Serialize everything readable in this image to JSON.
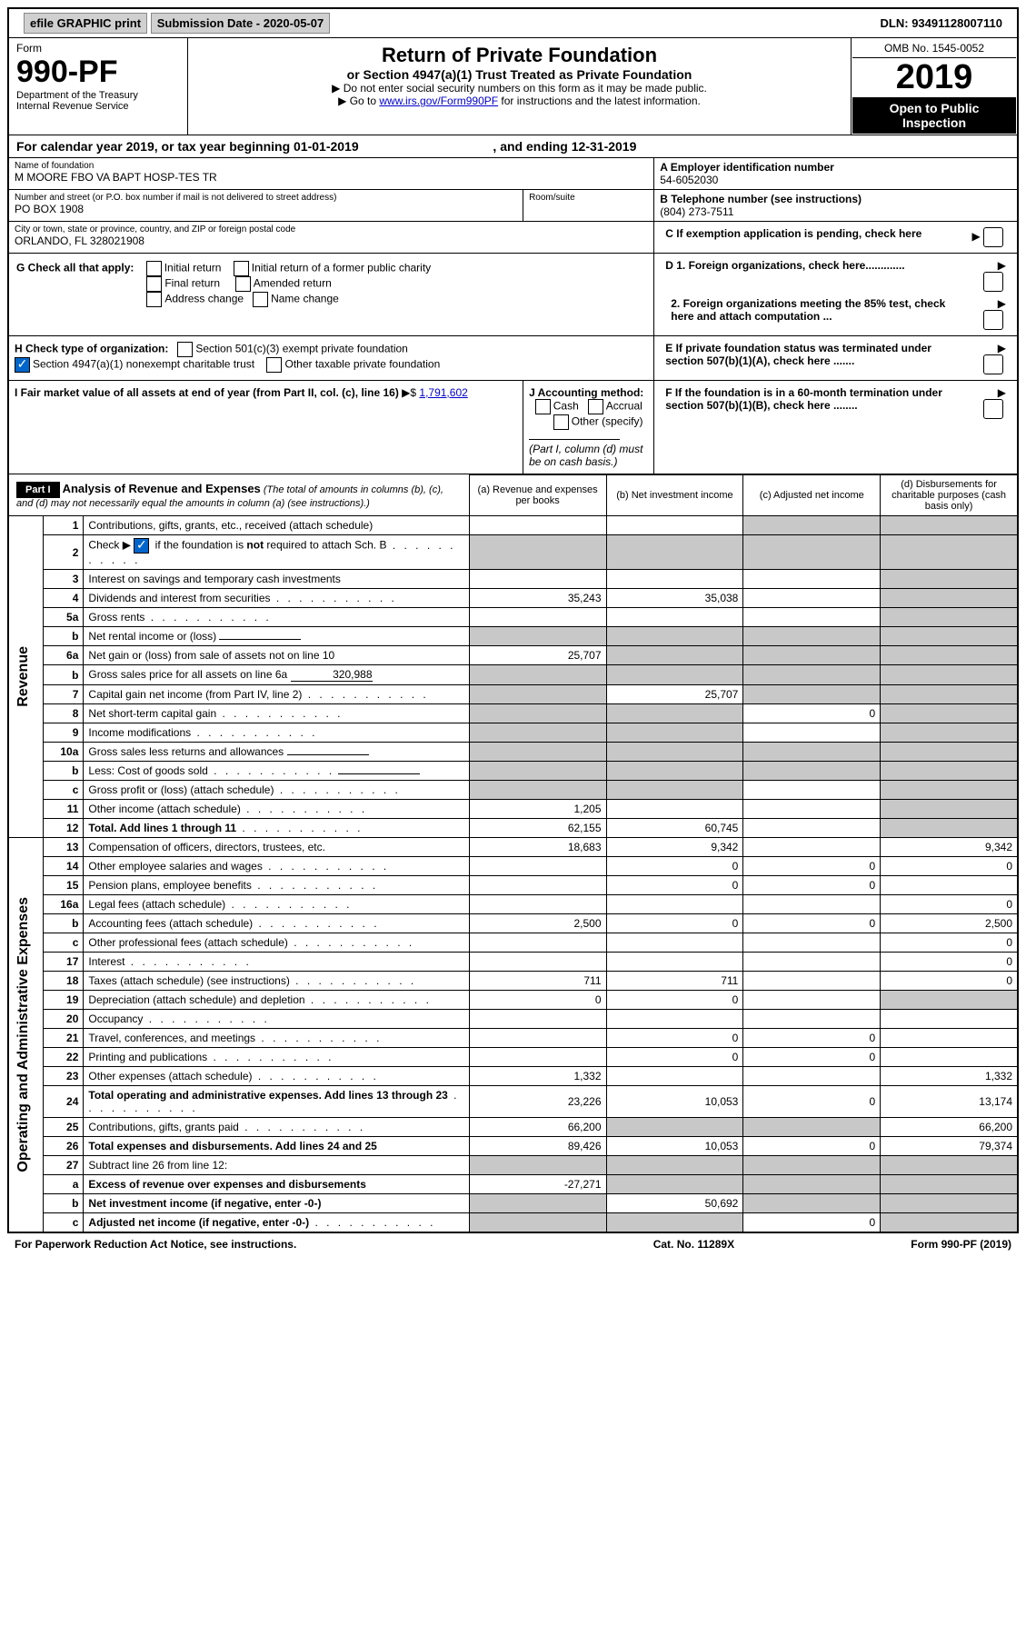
{
  "topbar": {
    "efile": "efile GRAPHIC print",
    "subdate_label": "Submission Date - 2020-05-07",
    "dln": "DLN: 93491128007110"
  },
  "header": {
    "form_label": "Form",
    "form_no": "990-PF",
    "dept1": "Department of the Treasury",
    "dept2": "Internal Revenue Service",
    "title": "Return of Private Foundation",
    "subtitle": "or Section 4947(a)(1) Trust Treated as Private Foundation",
    "note1": "▶ Do not enter social security numbers on this form as it may be made public.",
    "note2_pre": "▶ Go to ",
    "note2_link": "www.irs.gov/Form990PF",
    "note2_post": " for instructions and the latest information.",
    "omb": "OMB No. 1545-0052",
    "year": "2019",
    "open": "Open to Public Inspection"
  },
  "calyear": {
    "pre": "For calendar year 2019, or tax year beginning ",
    "begin": "01-01-2019",
    "mid": " , and ending ",
    "end": "12-31-2019"
  },
  "info": {
    "name_label": "Name of foundation",
    "name": "M MOORE FBO VA BAPT HOSP-TES TR",
    "addr_label": "Number and street (or P.O. box number if mail is not delivered to street address)",
    "addr": "PO BOX 1908",
    "room_label": "Room/suite",
    "city_label": "City or town, state or province, country, and ZIP or foreign postal code",
    "city": "ORLANDO, FL  328021908",
    "a_label": "A Employer identification number",
    "ein": "54-6052030",
    "b_label": "B Telephone number (see instructions)",
    "phone": "(804) 273-7511",
    "c_label": "C If exemption application is pending, check here",
    "d1": "D 1. Foreign organizations, check here.............",
    "d2": "2. Foreign organizations meeting the 85% test, check here and attach computation ...",
    "e_label": "E  If private foundation status was terminated under section 507(b)(1)(A), check here .......",
    "f_label": "F  If the foundation is in a 60-month termination under section 507(b)(1)(B), check here ........"
  },
  "g": {
    "label": "G Check all that apply:",
    "o1": "Initial return",
    "o2": "Initial return of a former public charity",
    "o3": "Final return",
    "o4": "Amended return",
    "o5": "Address change",
    "o6": "Name change"
  },
  "h": {
    "label": "H Check type of organization:",
    "o1": "Section 501(c)(3) exempt private foundation",
    "o2": "Section 4947(a)(1) nonexempt charitable trust",
    "o3": "Other taxable private foundation"
  },
  "i": {
    "label": "I Fair market value of all assets at end of year (from Part II, col. (c), line 16)",
    "prefix": "▶$",
    "value": "1,791,602"
  },
  "j": {
    "label": "J Accounting method:",
    "o1": "Cash",
    "o2": "Accrual",
    "o3": "Other (specify)",
    "note": "(Part I, column (d) must be on cash basis.)"
  },
  "part1": {
    "label": "Part I",
    "title": "Analysis of Revenue and Expenses",
    "sub": "(The total of amounts in columns (b), (c), and (d) may not necessarily equal the amounts in column (a) (see instructions).)",
    "cols": {
      "a": "(a) Revenue and expenses per books",
      "b": "(b) Net investment income",
      "c": "(c) Adjusted net income",
      "d": "(d) Disbursements for charitable purposes (cash basis only)"
    }
  },
  "side_rev": "Revenue",
  "side_exp": "Operating and Administrative Expenses",
  "rows": [
    {
      "n": "1",
      "d": "Contributions, gifts, grants, etc., received (attach schedule)",
      "a": "",
      "b": "",
      "c": "s",
      "dd": "s"
    },
    {
      "n": "2",
      "d": "Check ▶ ☑ if the foundation is not required to attach Sch. B",
      "a": "s",
      "b": "s",
      "c": "s",
      "dd": "s",
      "dots": true
    },
    {
      "n": "3",
      "d": "Interest on savings and temporary cash investments",
      "a": "",
      "b": "",
      "c": "",
      "dd": "s"
    },
    {
      "n": "4",
      "d": "Dividends and interest from securities",
      "a": "35,243",
      "b": "35,038",
      "c": "",
      "dd": "s",
      "dots": true
    },
    {
      "n": "5a",
      "d": "Gross rents",
      "a": "",
      "b": "",
      "c": "",
      "dd": "s",
      "dots": true
    },
    {
      "n": "b",
      "d": "Net rental income or (loss)",
      "a": "s",
      "b": "s",
      "c": "s",
      "dd": "s",
      "inline": true
    },
    {
      "n": "6a",
      "d": "Net gain or (loss) from sale of assets not on line 10",
      "a": "25,707",
      "b": "s",
      "c": "s",
      "dd": "s"
    },
    {
      "n": "b",
      "d": "Gross sales price for all assets on line 6a",
      "a": "s",
      "b": "s",
      "c": "s",
      "dd": "s",
      "inline": true,
      "ival": "320,988"
    },
    {
      "n": "7",
      "d": "Capital gain net income (from Part IV, line 2)",
      "a": "s",
      "b": "25,707",
      "c": "s",
      "dd": "s",
      "dots": true
    },
    {
      "n": "8",
      "d": "Net short-term capital gain",
      "a": "s",
      "b": "s",
      "c": "0",
      "dd": "s",
      "dots": true
    },
    {
      "n": "9",
      "d": "Income modifications",
      "a": "s",
      "b": "s",
      "c": "",
      "dd": "s",
      "dots": true
    },
    {
      "n": "10a",
      "d": "Gross sales less returns and allowances",
      "a": "s",
      "b": "s",
      "c": "s",
      "dd": "s",
      "inline": true
    },
    {
      "n": "b",
      "d": "Less: Cost of goods sold",
      "a": "s",
      "b": "s",
      "c": "s",
      "dd": "s",
      "inline": true,
      "dots": true
    },
    {
      "n": "c",
      "d": "Gross profit or (loss) (attach schedule)",
      "a": "s",
      "b": "s",
      "c": "",
      "dd": "s",
      "dots": true
    },
    {
      "n": "11",
      "d": "Other income (attach schedule)",
      "a": "1,205",
      "b": "",
      "c": "",
      "dd": "s",
      "dots": true
    },
    {
      "n": "12",
      "d": "Total. Add lines 1 through 11",
      "a": "62,155",
      "b": "60,745",
      "c": "",
      "dd": "s",
      "dots": true,
      "bold": true
    }
  ],
  "exp_rows": [
    {
      "n": "13",
      "d": "Compensation of officers, directors, trustees, etc.",
      "a": "18,683",
      "b": "9,342",
      "c": "",
      "dd": "9,342"
    },
    {
      "n": "14",
      "d": "Other employee salaries and wages",
      "a": "",
      "b": "0",
      "c": "0",
      "dd": "0",
      "dots": true
    },
    {
      "n": "15",
      "d": "Pension plans, employee benefits",
      "a": "",
      "b": "0",
      "c": "0",
      "dd": "",
      "dots": true
    },
    {
      "n": "16a",
      "d": "Legal fees (attach schedule)",
      "a": "",
      "b": "",
      "c": "",
      "dd": "0",
      "dots": true
    },
    {
      "n": "b",
      "d": "Accounting fees (attach schedule)",
      "a": "2,500",
      "b": "0",
      "c": "0",
      "dd": "2,500",
      "dots": true
    },
    {
      "n": "c",
      "d": "Other professional fees (attach schedule)",
      "a": "",
      "b": "",
      "c": "",
      "dd": "0",
      "dots": true
    },
    {
      "n": "17",
      "d": "Interest",
      "a": "",
      "b": "",
      "c": "",
      "dd": "0",
      "dots": true
    },
    {
      "n": "18",
      "d": "Taxes (attach schedule) (see instructions)",
      "a": "711",
      "b": "711",
      "c": "",
      "dd": "0",
      "dots": true
    },
    {
      "n": "19",
      "d": "Depreciation (attach schedule) and depletion",
      "a": "0",
      "b": "0",
      "c": "",
      "dd": "s",
      "dots": true
    },
    {
      "n": "20",
      "d": "Occupancy",
      "a": "",
      "b": "",
      "c": "",
      "dd": "",
      "dots": true
    },
    {
      "n": "21",
      "d": "Travel, conferences, and meetings",
      "a": "",
      "b": "0",
      "c": "0",
      "dd": "",
      "dots": true
    },
    {
      "n": "22",
      "d": "Printing and publications",
      "a": "",
      "b": "0",
      "c": "0",
      "dd": "",
      "dots": true
    },
    {
      "n": "23",
      "d": "Other expenses (attach schedule)",
      "a": "1,332",
      "b": "",
      "c": "",
      "dd": "1,332",
      "dots": true
    },
    {
      "n": "24",
      "d": "Total operating and administrative expenses. Add lines 13 through 23",
      "a": "23,226",
      "b": "10,053",
      "c": "0",
      "dd": "13,174",
      "dots": true,
      "bold": true
    },
    {
      "n": "25",
      "d": "Contributions, gifts, grants paid",
      "a": "66,200",
      "b": "s",
      "c": "s",
      "dd": "66,200",
      "dots": true
    },
    {
      "n": "26",
      "d": "Total expenses and disbursements. Add lines 24 and 25",
      "a": "89,426",
      "b": "10,053",
      "c": "0",
      "dd": "79,374",
      "bold": true
    },
    {
      "n": "27",
      "d": "Subtract line 26 from line 12:",
      "a": "s",
      "b": "s",
      "c": "s",
      "dd": "s"
    },
    {
      "n": "a",
      "d": "Excess of revenue over expenses and disbursements",
      "a": "-27,271",
      "b": "s",
      "c": "s",
      "dd": "s",
      "bold": true
    },
    {
      "n": "b",
      "d": "Net investment income (if negative, enter -0-)",
      "a": "s",
      "b": "50,692",
      "c": "s",
      "dd": "s",
      "bold": true
    },
    {
      "n": "c",
      "d": "Adjusted net income (if negative, enter -0-)",
      "a": "s",
      "b": "s",
      "c": "0",
      "dd": "s",
      "bold": true,
      "dots": true
    }
  ],
  "footer": {
    "left": "For Paperwork Reduction Act Notice, see instructions.",
    "mid": "Cat. No. 11289X",
    "right": "Form 990-PF (2019)"
  }
}
